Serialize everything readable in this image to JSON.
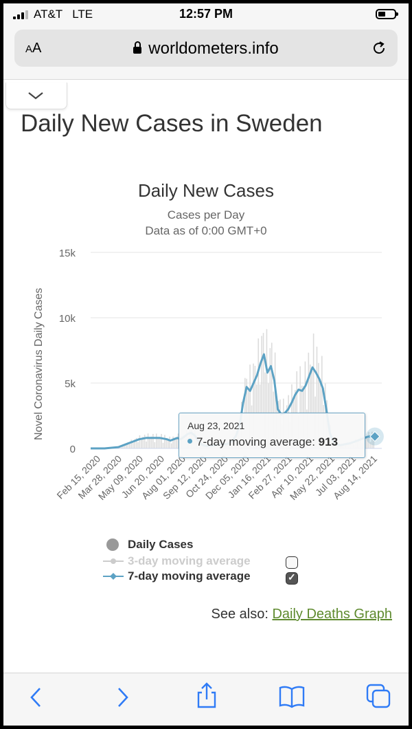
{
  "status_bar": {
    "carrier": "AT&T",
    "network": "LTE",
    "time": "12:57 PM"
  },
  "browser": {
    "text_size_label_small": "A",
    "text_size_label_large": "A",
    "url": "worldometers.info"
  },
  "page": {
    "title": "Daily New Cases in Sweden"
  },
  "chart_data": {
    "type": "line",
    "title": "Daily New Cases",
    "subtitle": "Cases per Day",
    "subtitle2": "Data as of 0:00 GMT+0",
    "ylabel": "Novel Coronavirus Daily Cases",
    "ylim": [
      0,
      15000
    ],
    "yticks": [
      "0",
      "5k",
      "10k",
      "15k"
    ],
    "xticks": [
      "Feb 15, 2020",
      "Mar 28, 2020",
      "May 09, 2020",
      "Jun 20, 2020",
      "Aug 01, 2020",
      "Sep 12, 2020",
      "Oct 24, 2020",
      "Dec 05, 2020",
      "Jan 16, 2021",
      "Feb 27, 2021",
      "Apr 10, 2021",
      "May 22, 2021",
      "Jul 03, 2021",
      "Aug 14, 2021"
    ],
    "grid": true,
    "series": [
      {
        "name": "7-day moving average",
        "color": "#5ca2c4",
        "x": [
          0,
          4,
          8,
          10,
          12,
          14,
          16,
          18,
          20,
          22,
          23,
          24,
          25,
          26,
          27,
          28,
          29,
          30,
          31,
          32,
          33,
          34,
          35,
          36,
          37,
          38,
          39,
          40,
          41,
          42,
          43,
          44,
          45,
          46,
          47,
          48,
          49,
          50,
          51,
          52,
          53,
          54,
          55,
          56,
          57,
          58,
          59,
          60,
          61,
          62,
          63,
          64,
          65,
          66,
          67,
          68,
          69,
          70,
          71,
          72,
          73,
          74,
          75,
          76,
          77,
          78,
          79,
          80,
          81,
          82
        ],
        "y": [
          0,
          0,
          100,
          300,
          500,
          700,
          800,
          800,
          800,
          700,
          600,
          700,
          800,
          700,
          900,
          1100,
          1200,
          1000,
          600,
          300,
          200,
          200,
          200,
          250,
          300,
          350,
          300,
          400,
          600,
          1000,
          1800,
          3500,
          4700,
          4400,
          5000,
          5600,
          6500,
          7200,
          5800,
          6300,
          5200,
          3000,
          2600,
          2700,
          3000,
          3500,
          4100,
          4500,
          4400,
          4800,
          5500,
          6200,
          5800,
          5300,
          4600,
          3000,
          1200,
          500,
          300,
          250,
          300,
          350,
          400,
          500,
          600,
          700,
          800,
          900,
          913,
          913
        ]
      },
      {
        "name": "Daily Cases",
        "color": "#d0d0d0",
        "note": "bars"
      }
    ],
    "tooltip": {
      "date": "Aug 23, 2021",
      "series": "7-day moving average",
      "value": "913"
    },
    "legend": [
      {
        "label": "Daily Cases",
        "checkbox": false
      },
      {
        "label": "3-day moving average",
        "checkbox": true,
        "checked": false
      },
      {
        "label": "7-day moving average",
        "checkbox": true,
        "checked": true
      }
    ]
  },
  "tooltip": {
    "date": "Aug 23, 2021",
    "series_label": "7-day moving average:",
    "value": "913"
  },
  "legend": {
    "daily": "Daily Cases",
    "ma3": "3-day moving average",
    "ma7": "7-day moving average"
  },
  "see_also": {
    "prefix": "See also:",
    "link": "Daily Deaths Graph"
  }
}
